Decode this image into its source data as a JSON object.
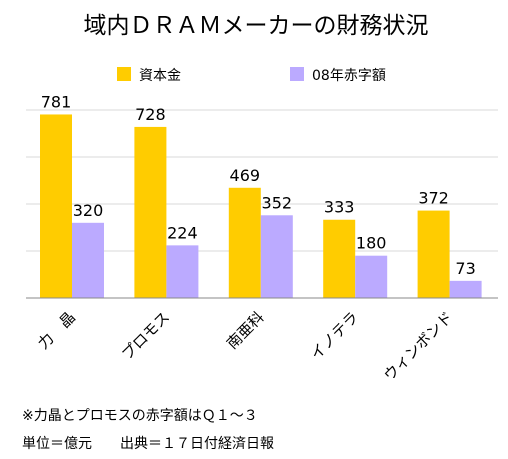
{
  "chart_data": {
    "type": "bar",
    "title": "域内ＤＲＡＭメーカーの財務状況",
    "categories": [
      "力　晶",
      "プロモス",
      "南亜科",
      "イノテラ",
      "ウィンボンド"
    ],
    "series": [
      {
        "name": "資本金",
        "values": [
          781,
          728,
          469,
          333,
          372
        ],
        "color": "#FFCC00"
      },
      {
        "name": "08年赤字額",
        "values": [
          320,
          224,
          352,
          180,
          73
        ],
        "color": "#BBAAFF"
      }
    ],
    "ylim": [
      0,
      800
    ],
    "gridlines": [
      200,
      400,
      600,
      800
    ],
    "grid": true,
    "legend": "top"
  },
  "notes": {
    "line1": "※力晶とプロモスの赤字額はＱ１～３",
    "line2": "単位＝億元　　出典＝１７日付経済日報"
  }
}
